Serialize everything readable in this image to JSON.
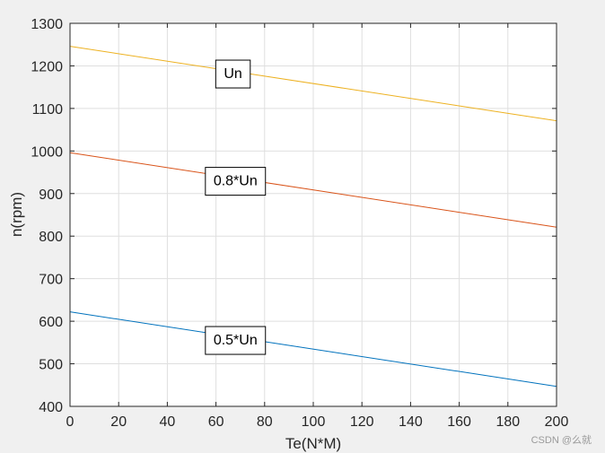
{
  "chart_data": {
    "type": "line",
    "title": "",
    "xlabel": "Te(N*M)",
    "ylabel": "n(rpm)",
    "xlim": [
      0,
      200
    ],
    "ylim": [
      400,
      1300
    ],
    "xticks": [
      0,
      20,
      40,
      60,
      80,
      100,
      120,
      140,
      160,
      180,
      200
    ],
    "yticks": [
      400,
      500,
      600,
      700,
      800,
      900,
      1000,
      1100,
      1200,
      1300
    ],
    "grid": true,
    "series": [
      {
        "name": "Un",
        "color": "#EDB120",
        "x": [
          0,
          200
        ],
        "y": [
          1246,
          1071
        ]
      },
      {
        "name": "0.8*Un",
        "color": "#D95319",
        "x": [
          0,
          200
        ],
        "y": [
          996,
          821
        ]
      },
      {
        "name": "0.5*Un",
        "color": "#0072BD",
        "x": [
          0,
          200
        ],
        "y": [
          622,
          447
        ]
      }
    ],
    "annotations": [
      {
        "text": "Un",
        "x": 67,
        "y": 1184
      },
      {
        "text": "0.8*Un",
        "x": 68,
        "y": 932
      },
      {
        "text": "0.5*Un",
        "x": 68,
        "y": 558
      }
    ]
  },
  "watermark": "CSDN @么就"
}
